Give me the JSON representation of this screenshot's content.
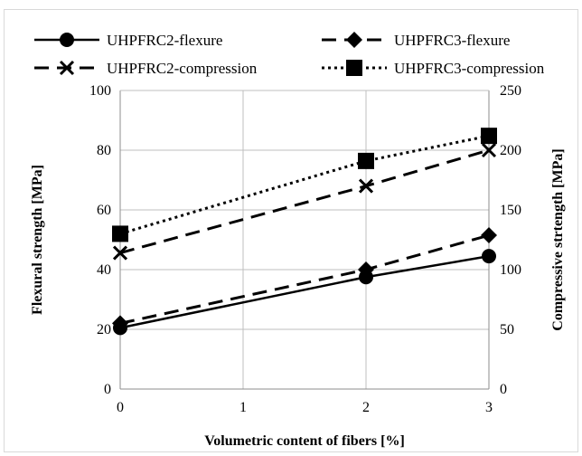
{
  "chart_data": {
    "type": "line",
    "title": "",
    "xlabel": "Volumetric content of fibers [%]",
    "ylabel": "Flexural strength [MPa]",
    "y2label": "Compressive strtength [MPa]",
    "x": [
      0,
      2,
      3
    ],
    "xticks": [
      "0",
      "1",
      "2",
      "3"
    ],
    "xlim": [
      0,
      3
    ],
    "ylim": [
      0,
      100
    ],
    "yticks": [
      "0",
      "20",
      "40",
      "60",
      "80",
      "100"
    ],
    "y2lim": [
      0,
      250
    ],
    "y2ticks": [
      "0",
      "50",
      "100",
      "150",
      "200",
      "250"
    ],
    "grid": true,
    "legend_position": "top",
    "series": [
      {
        "name": "UHPFRC2-flexure",
        "axis": "left",
        "marker": "circle",
        "line": "solid",
        "values": [
          20.5,
          37.5,
          44.5
        ]
      },
      {
        "name": "UHPFRC3-flexure",
        "axis": "left",
        "marker": "diamond",
        "line": "dashed",
        "values": [
          22,
          40,
          51.5
        ]
      },
      {
        "name": "UHPFRC2-compression",
        "axis": "right",
        "marker": "x",
        "line": "dashed",
        "values": [
          114,
          170,
          200
        ]
      },
      {
        "name": "UHPFRC3-compression",
        "axis": "right",
        "marker": "square",
        "line": "dotted",
        "values": [
          130,
          191,
          212
        ]
      }
    ],
    "colors": {
      "line": "#000000",
      "grid": "#bfbfbf",
      "axis": "#8c8c8c"
    }
  }
}
